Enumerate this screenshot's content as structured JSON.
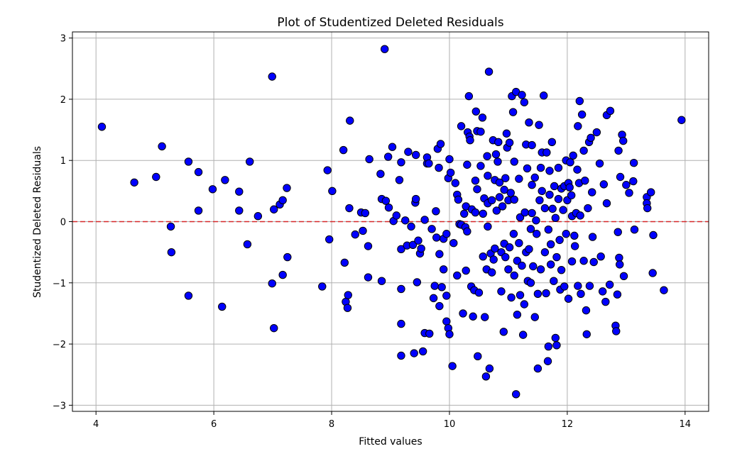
{
  "chart_data": {
    "type": "scatter",
    "title": "Plot of Studentized Deleted Residuals",
    "xlabel": "Fitted values",
    "ylabel": "Studentized Deleted Residuals",
    "xlim": [
      3.6,
      14.4
    ],
    "ylim": [
      -3.1,
      3.1
    ],
    "xticks": [
      4,
      6,
      8,
      10,
      12,
      14
    ],
    "yticks": [
      -3,
      -2,
      -1,
      0,
      1,
      2,
      3
    ],
    "xtick_labels": [
      "4",
      "6",
      "8",
      "10",
      "12",
      "14"
    ],
    "ytick_labels": [
      "−3",
      "−2",
      "−1",
      "0",
      "1",
      "2",
      "3"
    ],
    "grid": true,
    "reference_line": {
      "y": 0,
      "style": "dashed",
      "color": "#d62728"
    },
    "marker": {
      "fill": "#0000ff",
      "edge": "#000000"
    },
    "points": [
      [
        4.1,
        1.55
      ],
      [
        4.65,
        0.64
      ],
      [
        5.02,
        0.73
      ],
      [
        5.12,
        1.23
      ],
      [
        5.27,
        -0.08
      ],
      [
        5.28,
        -0.5
      ],
      [
        5.57,
        0.98
      ],
      [
        5.57,
        -1.21
      ],
      [
        5.74,
        0.81
      ],
      [
        5.74,
        0.18
      ],
      [
        5.98,
        0.53
      ],
      [
        6.14,
        -1.39
      ],
      [
        6.19,
        0.68
      ],
      [
        6.43,
        0.49
      ],
      [
        6.43,
        0.18
      ],
      [
        6.57,
        -0.37
      ],
      [
        6.61,
        0.98
      ],
      [
        6.75,
        0.09
      ],
      [
        6.99,
        2.37
      ],
      [
        6.99,
        -1.01
      ],
      [
        7.02,
        0.2
      ],
      [
        7.02,
        -1.74
      ],
      [
        7.12,
        0.28
      ],
      [
        7.17,
        0.35
      ],
      [
        7.17,
        -0.87
      ],
      [
        7.24,
        0.55
      ],
      [
        7.25,
        -0.58
      ],
      [
        7.84,
        -1.06
      ],
      [
        7.93,
        0.84
      ],
      [
        7.96,
        -0.29
      ],
      [
        8.01,
        0.5
      ],
      [
        8.2,
        1.17
      ],
      [
        8.22,
        -0.67
      ],
      [
        8.24,
        -1.31
      ],
      [
        8.27,
        -1.41
      ],
      [
        8.28,
        -1.2
      ],
      [
        8.3,
        0.22
      ],
      [
        8.31,
        1.65
      ],
      [
        8.4,
        -0.21
      ],
      [
        8.5,
        0.15
      ],
      [
        8.53,
        -0.15
      ],
      [
        8.57,
        0.14
      ],
      [
        8.62,
        -0.4
      ],
      [
        8.62,
        -0.91
      ],
      [
        8.64,
        1.02
      ],
      [
        8.83,
        0.78
      ],
      [
        8.85,
        0.37
      ],
      [
        8.85,
        -0.97
      ],
      [
        8.9,
        2.82
      ],
      [
        8.92,
        0.34
      ],
      [
        8.96,
        1.06
      ],
      [
        8.97,
        0.23
      ],
      [
        9.03,
        1.22
      ],
      [
        9.05,
        0.01
      ],
      [
        9.15,
        0.68
      ],
      [
        9.18,
        0.97
      ],
      [
        9.18,
        -0.45
      ],
      [
        9.18,
        -1.1
      ],
      [
        9.18,
        -1.67
      ],
      [
        9.18,
        -2.19
      ],
      [
        9.25,
        0.02
      ],
      [
        9.28,
        -0.39
      ],
      [
        9.3,
        1.14
      ],
      [
        9.35,
        -0.08
      ],
      [
        9.38,
        -0.38
      ],
      [
        9.4,
        -2.15
      ],
      [
        9.42,
        0.31
      ],
      [
        9.43,
        0.37
      ],
      [
        9.43,
        1.09
      ],
      [
        9.45,
        -0.99
      ],
      [
        9.47,
        -0.31
      ],
      [
        9.5,
        -0.52
      ],
      [
        9.52,
        -0.44
      ],
      [
        9.55,
        -2.12
      ],
      [
        9.58,
        0.03
      ],
      [
        9.58,
        -1.82
      ],
      [
        9.62,
        0.95
      ],
      [
        9.62,
        1.05
      ],
      [
        9.65,
        0.95
      ],
      [
        9.66,
        -1.83
      ],
      [
        9.7,
        -0.12
      ],
      [
        9.73,
        -1.25
      ],
      [
        9.75,
        -1.05
      ],
      [
        9.77,
        0.17
      ],
      [
        9.78,
        -0.26
      ],
      [
        9.8,
        1.19
      ],
      [
        9.82,
        0.88
      ],
      [
        9.83,
        -0.53
      ],
      [
        9.83,
        -1.38
      ],
      [
        9.85,
        1.27
      ],
      [
        9.87,
        -1.07
      ],
      [
        9.9,
        -0.78
      ],
      [
        9.9,
        -0.28
      ],
      [
        9.95,
        -1.63
      ],
      [
        9.95,
        -1.21
      ],
      [
        9.95,
        -0.2
      ],
      [
        9.98,
        -1.74
      ],
      [
        9.98,
        0.71
      ],
      [
        10.0,
        1.02
      ],
      [
        10.0,
        -1.84
      ],
      [
        10.02,
        0.8
      ],
      [
        10.05,
        -2.36
      ],
      [
        10.07,
        -0.35
      ],
      [
        10.1,
        0.63
      ],
      [
        10.13,
        0.44
      ],
      [
        10.13,
        -0.88
      ],
      [
        10.15,
        0.36
      ],
      [
        10.17,
        -0.04
      ],
      [
        10.2,
        1.56
      ],
      [
        10.2,
        -0.05
      ],
      [
        10.23,
        -1.5
      ],
      [
        10.25,
        0.13
      ],
      [
        10.27,
        -0.09
      ],
      [
        10.28,
        0.25
      ],
      [
        10.28,
        -0.8
      ],
      [
        10.3,
        0.93
      ],
      [
        10.31,
        1.46
      ],
      [
        10.33,
        2.05
      ],
      [
        10.34,
        1.39
      ],
      [
        10.35,
        1.33
      ],
      [
        10.37,
        -1.06
      ],
      [
        10.38,
        0.2
      ],
      [
        10.4,
        -1.55
      ],
      [
        10.42,
        -1.12
      ],
      [
        10.44,
        0.15
      ],
      [
        10.44,
        0.67
      ],
      [
        10.45,
        1.8
      ],
      [
        10.47,
        0.53
      ],
      [
        10.47,
        1.48
      ],
      [
        10.48,
        -2.2
      ],
      [
        10.5,
        -1.16
      ],
      [
        10.53,
        1.47
      ],
      [
        10.53,
        0.91
      ],
      [
        10.56,
        1.7
      ],
      [
        10.57,
        -0.57
      ],
      [
        10.57,
        0.13
      ],
      [
        10.59,
        0.38
      ],
      [
        10.6,
        -1.56
      ],
      [
        10.62,
        -2.53
      ],
      [
        10.63,
        -0.78
      ],
      [
        10.64,
        1.07
      ],
      [
        10.65,
        0.3
      ],
      [
        10.65,
        0.75
      ],
      [
        10.67,
        2.45
      ],
      [
        10.68,
        -2.4
      ],
      [
        10.7,
        -0.52
      ],
      [
        10.72,
        -0.83
      ],
      [
        10.72,
        0.35
      ],
      [
        10.74,
        1.33
      ],
      [
        10.77,
        0.68
      ],
      [
        10.77,
        -0.44
      ],
      [
        10.79,
        1.1
      ],
      [
        10.8,
        0.18
      ],
      [
        10.82,
        0.98
      ],
      [
        10.83,
        1.3
      ],
      [
        10.85,
        0.4
      ],
      [
        10.85,
        0.64
      ],
      [
        10.88,
        -0.5
      ],
      [
        10.88,
        -1.14
      ],
      [
        10.9,
        0.25
      ],
      [
        10.92,
        -1.8
      ],
      [
        10.93,
        -0.36
      ],
      [
        10.93,
        0.52
      ],
      [
        10.95,
        -0.58
      ],
      [
        10.95,
        0.71
      ],
      [
        10.97,
        1.44
      ],
      [
        10.98,
        1.21
      ],
      [
        11.0,
        -0.78
      ],
      [
        11.0,
        0.35
      ],
      [
        11.02,
        -0.42
      ],
      [
        11.02,
        1.29
      ],
      [
        11.04,
        0.47
      ],
      [
        11.05,
        -1.24
      ],
      [
        11.06,
        2.05
      ],
      [
        11.08,
        1.79
      ],
      [
        11.09,
        -0.2
      ],
      [
        11.1,
        0.98
      ],
      [
        11.1,
        -0.88
      ],
      [
        11.13,
        2.12
      ],
      [
        11.13,
        -2.82
      ],
      [
        11.15,
        -1.52
      ],
      [
        11.15,
        -0.64
      ],
      [
        11.18,
        -0.35
      ],
      [
        11.18,
        0.7
      ],
      [
        11.2,
        -1.2
      ],
      [
        11.2,
        0.07
      ],
      [
        11.23,
        2.07
      ],
      [
        11.23,
        -0.72
      ],
      [
        11.25,
        -1.85
      ],
      [
        11.27,
        1.95
      ],
      [
        11.27,
        -1.35
      ],
      [
        11.28,
        0.15
      ],
      [
        11.3,
        -0.5
      ],
      [
        11.3,
        1.26
      ],
      [
        11.32,
        0.87
      ],
      [
        11.33,
        -0.97
      ],
      [
        11.35,
        1.62
      ],
      [
        11.35,
        -0.45
      ],
      [
        11.38,
        -0.12
      ],
      [
        11.38,
        -1.0
      ],
      [
        11.4,
        0.14
      ],
      [
        11.4,
        1.25
      ],
      [
        11.42,
        -0.73
      ],
      [
        11.45,
        0.72
      ],
      [
        11.45,
        -1.56
      ],
      [
        11.47,
        0.02
      ],
      [
        11.48,
        -0.2
      ],
      [
        11.5,
        -2.4
      ],
      [
        11.5,
        -1.18
      ],
      [
        11.52,
        1.58
      ],
      [
        11.53,
        0.35
      ],
      [
        11.55,
        -0.78
      ],
      [
        11.57,
        1.13
      ],
      [
        11.57,
        0.5
      ],
      [
        11.6,
        2.06
      ],
      [
        11.62,
        -0.5
      ],
      [
        11.62,
        0.22
      ],
      [
        11.64,
        -1.17
      ],
      [
        11.65,
        1.13
      ],
      [
        11.67,
        -2.28
      ],
      [
        11.68,
        -0.13
      ],
      [
        11.68,
        -2.04
      ],
      [
        11.7,
        0.83
      ],
      [
        11.7,
        0.44
      ],
      [
        11.72,
        -0.37
      ],
      [
        11.72,
        -0.7
      ],
      [
        11.74,
        1.3
      ],
      [
        11.75,
        0.21
      ],
      [
        11.77,
        -0.97
      ],
      [
        11.78,
        0.58
      ],
      [
        11.8,
        0.06
      ],
      [
        11.8,
        -1.9
      ],
      [
        11.82,
        -2.02
      ],
      [
        11.82,
        -0.58
      ],
      [
        11.85,
        0.37
      ],
      [
        11.85,
        0.88
      ],
      [
        11.87,
        -0.3
      ],
      [
        11.88,
        -1.11
      ],
      [
        11.9,
        0.54
      ],
      [
        11.9,
        -0.79
      ],
      [
        11.93,
        0.19
      ],
      [
        11.95,
        0.58
      ],
      [
        11.95,
        -1.06
      ],
      [
        11.98,
        -0.2
      ],
      [
        11.98,
        1.0
      ],
      [
        12.0,
        0.35
      ],
      [
        12.02,
        -1.26
      ],
      [
        12.02,
        0.63
      ],
      [
        12.04,
        0.56
      ],
      [
        12.05,
        0.97
      ],
      [
        12.07,
        0.43
      ],
      [
        12.08,
        0.09
      ],
      [
        12.08,
        -0.65
      ],
      [
        12.1,
        1.08
      ],
      [
        12.12,
        -0.23
      ],
      [
        12.13,
        -0.4
      ],
      [
        12.15,
        0.14
      ],
      [
        12.17,
        0.85
      ],
      [
        12.18,
        -1.05
      ],
      [
        12.18,
        1.56
      ],
      [
        12.2,
        0.63
      ],
      [
        12.21,
        1.97
      ],
      [
        12.22,
        0.1
      ],
      [
        12.23,
        -1.18
      ],
      [
        12.25,
        1.75
      ],
      [
        12.28,
        1.16
      ],
      [
        12.28,
        -0.64
      ],
      [
        12.3,
        0.67
      ],
      [
        12.32,
        -1.45
      ],
      [
        12.33,
        -1.84
      ],
      [
        12.35,
        0.22
      ],
      [
        12.37,
        1.3
      ],
      [
        12.38,
        -1.05
      ],
      [
        12.4,
        1.37
      ],
      [
        12.42,
        0.48
      ],
      [
        12.43,
        -0.25
      ],
      [
        12.45,
        -0.66
      ],
      [
        12.5,
        1.46
      ],
      [
        12.55,
        0.95
      ],
      [
        12.57,
        -0.57
      ],
      [
        12.6,
        -1.14
      ],
      [
        12.62,
        0.61
      ],
      [
        12.65,
        -1.31
      ],
      [
        12.67,
        1.74
      ],
      [
        12.67,
        0.3
      ],
      [
        12.72,
        -1.03
      ],
      [
        12.73,
        1.81
      ],
      [
        12.82,
        -1.7
      ],
      [
        12.83,
        -1.79
      ],
      [
        12.85,
        -1.19
      ],
      [
        12.87,
        1.16
      ],
      [
        12.88,
        -0.59
      ],
      [
        12.89,
        -0.7
      ],
      [
        12.9,
        0.73
      ],
      [
        12.93,
        1.42
      ],
      [
        12.95,
        1.32
      ],
      [
        12.96,
        -0.89
      ],
      [
        13.0,
        0.6
      ],
      [
        13.05,
        0.47
      ],
      [
        13.12,
        0.66
      ],
      [
        13.13,
        0.96
      ],
      [
        13.14,
        -0.13
      ],
      [
        13.35,
        0.4
      ],
      [
        13.35,
        0.3
      ],
      [
        13.36,
        0.22
      ],
      [
        13.42,
        0.48
      ],
      [
        13.45,
        -0.84
      ],
      [
        13.46,
        -0.22
      ],
      [
        13.64,
        -1.12
      ],
      [
        13.94,
        1.66
      ],
      [
        12.86,
        -0.17
      ],
      [
        10.3,
        -0.16
      ],
      [
        11.4,
        0.6
      ],
      [
        10.75,
        -0.62
      ],
      [
        11.1,
        0.36
      ],
      [
        9.1,
        0.1
      ],
      [
        11.55,
        0.88
      ],
      [
        10.65,
        -0.08
      ]
    ]
  }
}
